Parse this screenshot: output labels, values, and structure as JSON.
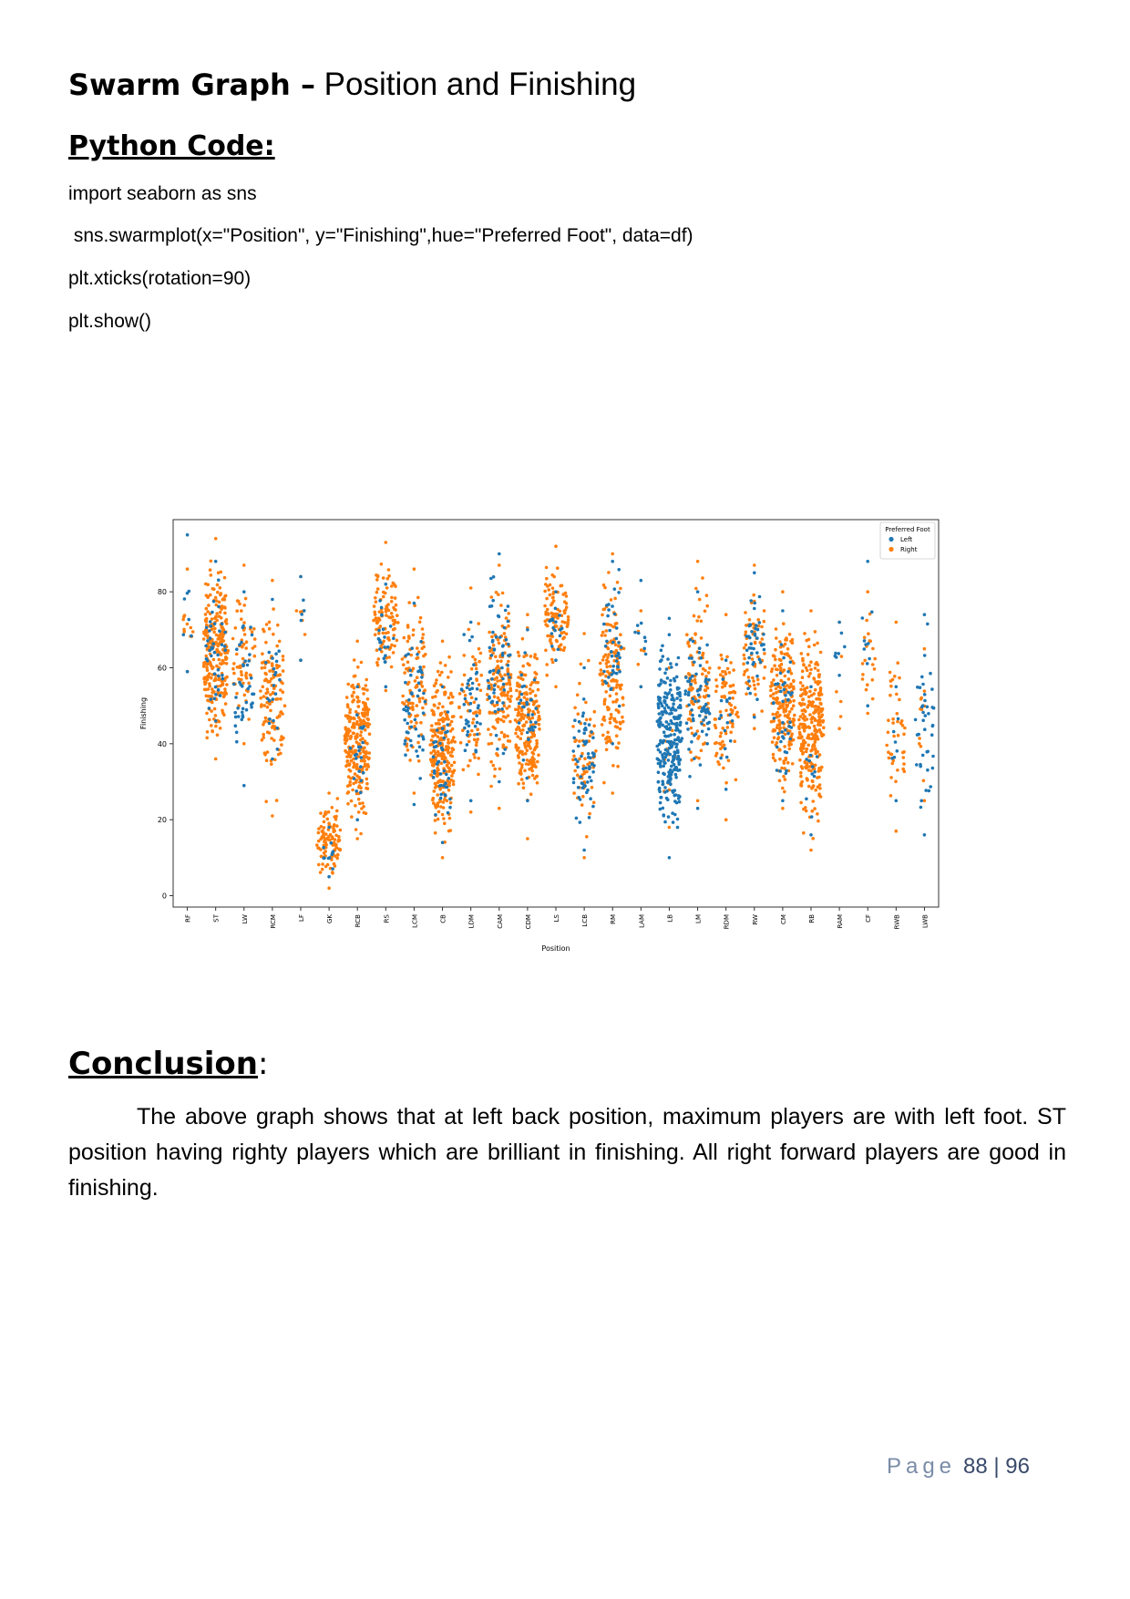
{
  "heading": {
    "bold": "Swarm Graph –",
    "rest": " Position and Finishing"
  },
  "code_heading": "Python Code:",
  "code_lines": [
    "import seaborn as sns",
    " sns.swarmplot(x=\"Position\", y=\"Finishing\",hue=\"Preferred Foot\", data=df)",
    "plt.xticks(rotation=90)",
    "plt.show()"
  ],
  "conclusion_heading": "Conclusion",
  "conclusion_colon": ":",
  "conclusion_text": "The above graph shows that at left back position, maximum players are with left foot. ST position having righty players which are brilliant in finishing. All right forward players are good in finishing.",
  "footer": {
    "page_word": "Page",
    "numbers": "88 | 96"
  },
  "colors": {
    "left": "#1f77b4",
    "right": "#ff7f0e"
  },
  "chart_data": {
    "type": "scatter",
    "style": "swarm",
    "xlabel": "Position",
    "ylabel": "Finishing",
    "ylim": [
      0,
      100
    ],
    "yticks": [
      0,
      20,
      40,
      60,
      80
    ],
    "grid": false,
    "legend": {
      "title": "Preferred Foot",
      "position": "top-right",
      "entries": [
        "Left",
        "Right"
      ]
    },
    "categories": [
      "RF",
      "ST",
      "LW",
      "RCM",
      "LF",
      "GK",
      "RCB",
      "RS",
      "LCM",
      "CB",
      "LDM",
      "CAM",
      "CDM",
      "LS",
      "LCB",
      "RM",
      "LAM",
      "LB",
      "LM",
      "RDM",
      "RW",
      "CM",
      "RB",
      "RAM",
      "CF",
      "RWB",
      "LWB"
    ],
    "series": [
      {
        "name": "Left",
        "summary": [
          {
            "cat": "RF",
            "min": 59,
            "max": 95,
            "n": 6
          },
          {
            "cat": "ST",
            "min": 46,
            "max": 88,
            "n": 40
          },
          {
            "cat": "LW",
            "min": 29,
            "max": 80,
            "n": 40
          },
          {
            "cat": "RCM",
            "min": 36,
            "max": 78,
            "n": 20
          },
          {
            "cat": "LF",
            "min": 62,
            "max": 84,
            "n": 4
          },
          {
            "cat": "GK",
            "min": 5,
            "max": 18,
            "n": 10
          },
          {
            "cat": "RCB",
            "min": 20,
            "max": 55,
            "n": 20
          },
          {
            "cat": "RS",
            "min": 55,
            "max": 82,
            "n": 20
          },
          {
            "cat": "LCM",
            "min": 24,
            "max": 77,
            "n": 50
          },
          {
            "cat": "CB",
            "min": 14,
            "max": 55,
            "n": 40
          },
          {
            "cat": "LDM",
            "min": 25,
            "max": 72,
            "n": 40
          },
          {
            "cat": "CAM",
            "min": 30,
            "max": 90,
            "n": 60
          },
          {
            "cat": "CDM",
            "min": 25,
            "max": 70,
            "n": 30
          },
          {
            "cat": "LS",
            "min": 62,
            "max": 80,
            "n": 15
          },
          {
            "cat": "LCB",
            "min": 12,
            "max": 60,
            "n": 60
          },
          {
            "cat": "RM",
            "min": 40,
            "max": 88,
            "n": 40
          },
          {
            "cat": "LAM",
            "min": 55,
            "max": 83,
            "n": 8
          },
          {
            "cat": "LB",
            "min": 10,
            "max": 73,
            "n": 300
          },
          {
            "cat": "LM",
            "min": 23,
            "max": 80,
            "n": 70
          },
          {
            "cat": "RDM",
            "min": 28,
            "max": 62,
            "n": 15
          },
          {
            "cat": "RW",
            "min": 47,
            "max": 85,
            "n": 40
          },
          {
            "cat": "CM",
            "min": 25,
            "max": 75,
            "n": 40
          },
          {
            "cat": "RB",
            "min": 16,
            "max": 55,
            "n": 10
          },
          {
            "cat": "RAM",
            "min": 58,
            "max": 72,
            "n": 6
          },
          {
            "cat": "CF",
            "min": 50,
            "max": 88,
            "n": 8
          },
          {
            "cat": "RWB",
            "min": 25,
            "max": 55,
            "n": 6
          },
          {
            "cat": "LWB",
            "min": 16,
            "max": 74,
            "n": 40
          }
        ]
      },
      {
        "name": "Right",
        "summary": [
          {
            "cat": "RF",
            "min": 59,
            "max": 86,
            "n": 10
          },
          {
            "cat": "ST",
            "min": 36,
            "max": 94,
            "n": 300
          },
          {
            "cat": "LW",
            "min": 40,
            "max": 87,
            "n": 60
          },
          {
            "cat": "RCM",
            "min": 21,
            "max": 83,
            "n": 120
          },
          {
            "cat": "LF",
            "min": 62,
            "max": 84,
            "n": 5
          },
          {
            "cat": "GK",
            "min": 2,
            "max": 27,
            "n": 100
          },
          {
            "cat": "RCB",
            "min": 15,
            "max": 67,
            "n": 250
          },
          {
            "cat": "RS",
            "min": 54,
            "max": 93,
            "n": 100
          },
          {
            "cat": "LCM",
            "min": 27,
            "max": 86,
            "n": 100
          },
          {
            "cat": "CB",
            "min": 10,
            "max": 67,
            "n": 300
          },
          {
            "cat": "LDM",
            "min": 22,
            "max": 81,
            "n": 60
          },
          {
            "cat": "CAM",
            "min": 23,
            "max": 87,
            "n": 150
          },
          {
            "cat": "CDM",
            "min": 15,
            "max": 74,
            "n": 200
          },
          {
            "cat": "LS",
            "min": 55,
            "max": 92,
            "n": 100
          },
          {
            "cat": "LCB",
            "min": 10,
            "max": 69,
            "n": 60
          },
          {
            "cat": "RM",
            "min": 27,
            "max": 90,
            "n": 150
          },
          {
            "cat": "LAM",
            "min": 55,
            "max": 75,
            "n": 4
          },
          {
            "cat": "LB",
            "min": 18,
            "max": 60,
            "n": 10
          },
          {
            "cat": "LM",
            "min": 25,
            "max": 88,
            "n": 100
          },
          {
            "cat": "RDM",
            "min": 20,
            "max": 74,
            "n": 80
          },
          {
            "cat": "RW",
            "min": 44,
            "max": 87,
            "n": 60
          },
          {
            "cat": "CM",
            "min": 23,
            "max": 80,
            "n": 200
          },
          {
            "cat": "RB",
            "min": 12,
            "max": 75,
            "n": 400
          },
          {
            "cat": "RAM",
            "min": 44,
            "max": 72,
            "n": 4
          },
          {
            "cat": "CF",
            "min": 48,
            "max": 80,
            "n": 20
          },
          {
            "cat": "RWB",
            "min": 17,
            "max": 72,
            "n": 40
          },
          {
            "cat": "LWB",
            "min": 25,
            "max": 65,
            "n": 10
          }
        ]
      }
    ]
  }
}
